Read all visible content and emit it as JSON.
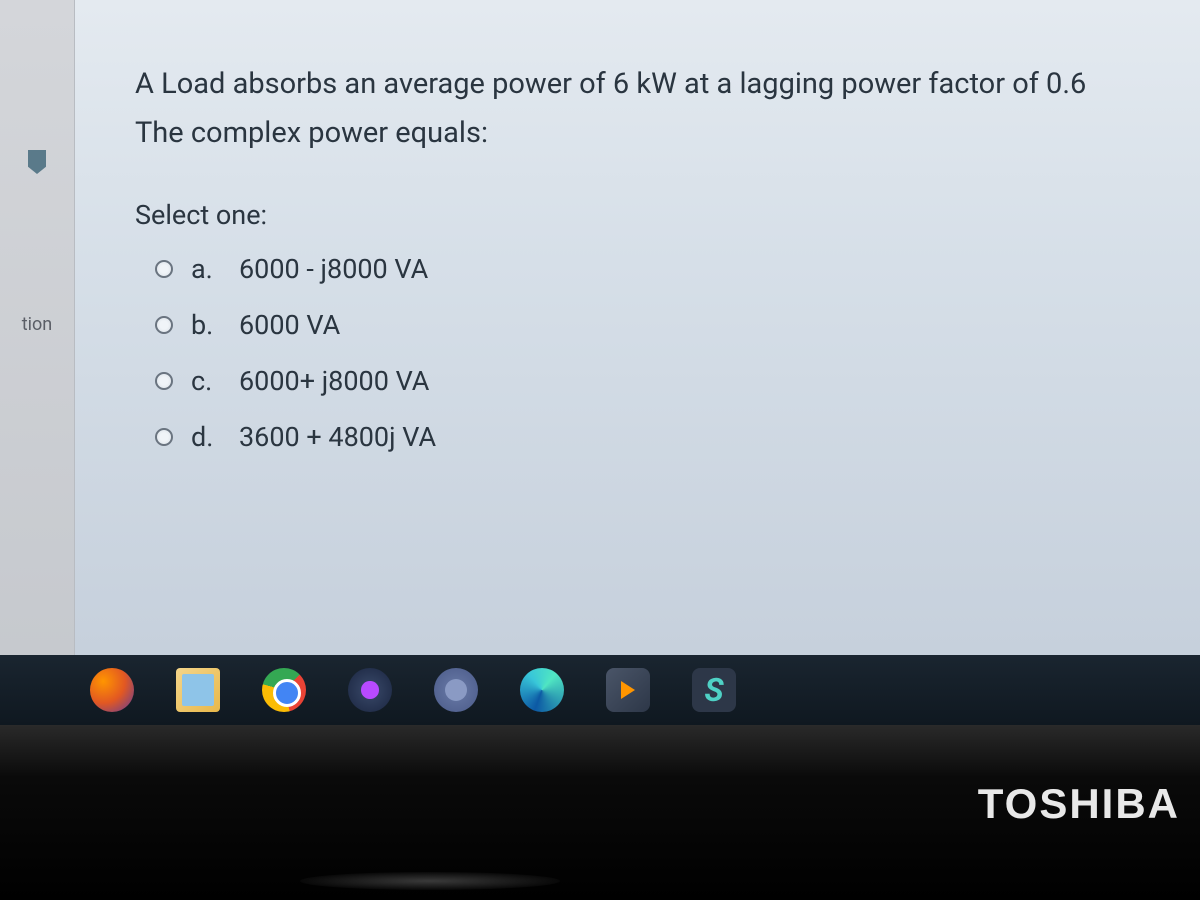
{
  "sidebar": {
    "label_fragment": "tion"
  },
  "question": {
    "line1": "A Load absorbs an average power of 6 kW at a lagging power factor of 0.6",
    "line2": "The complex power equals:",
    "select_prompt": "Select one:",
    "options": [
      {
        "letter": "a.",
        "text": "6000 - j8000 VA"
      },
      {
        "letter": "b.",
        "text": "6000 VA"
      },
      {
        "letter": "c.",
        "text": "6000+ j8000 VA"
      },
      {
        "letter": "d.",
        "text": "3600 + 4800j VA"
      }
    ]
  },
  "taskbar": {
    "icons": [
      {
        "name": "firefox-icon"
      },
      {
        "name": "file-explorer-icon"
      },
      {
        "name": "chrome-icon"
      },
      {
        "name": "opera-gx-icon"
      },
      {
        "name": "teams-icon"
      },
      {
        "name": "edge-icon"
      },
      {
        "name": "media-player-icon"
      },
      {
        "name": "skype-icon"
      }
    ],
    "skype_letter": "S"
  },
  "laptop": {
    "brand_visible": "TOSHIBA"
  },
  "colors": {
    "content_bg_top": "#e4eaf0",
    "content_bg_bottom": "#c6d0dc",
    "text": "#2a3540",
    "sidebar_bg": "#d4d6da",
    "taskbar_bg": "#0f1820",
    "bezel": "#0a0a0a"
  },
  "font_sizes_pt": {
    "question": 22,
    "options": 20,
    "brand": 32
  }
}
